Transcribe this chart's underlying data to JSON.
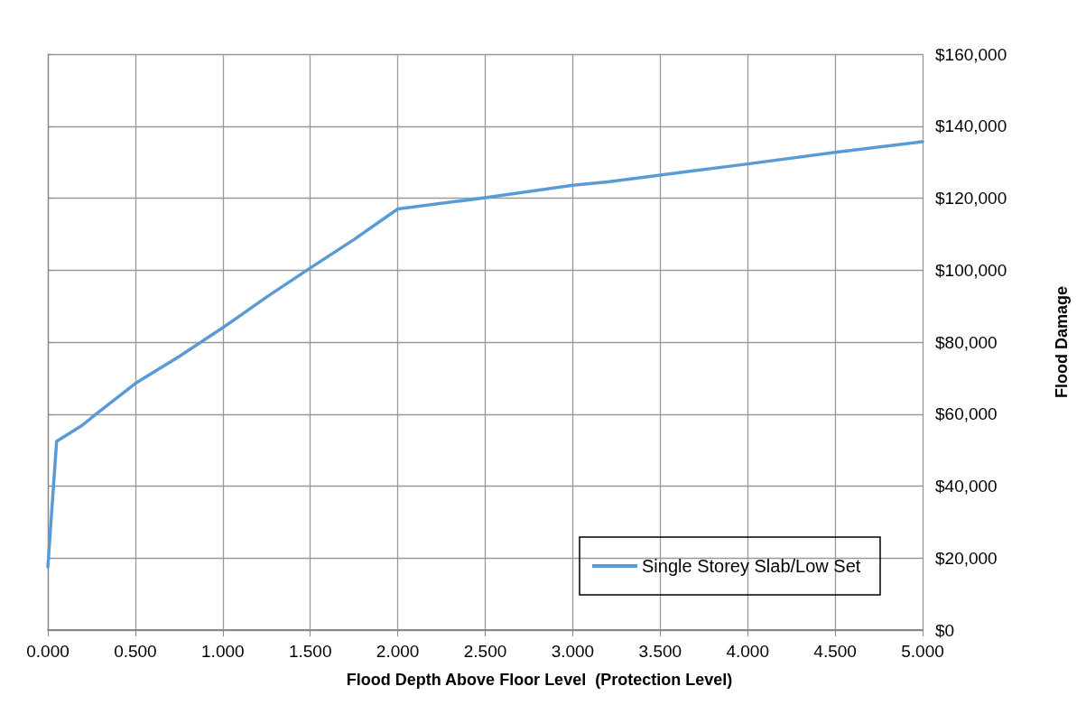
{
  "chart_data": {
    "type": "line",
    "xlabel": "Flood Depth Above Floor Level  (Protection Level)",
    "ylabel": "Flood Damage",
    "x": [
      0,
      0.05,
      0.2,
      0.25,
      0.5,
      0.75,
      1.0,
      1.25,
      1.5,
      1.75,
      2.0,
      2.5,
      3.0,
      3.2,
      3.5,
      4.0,
      4.5,
      5.0
    ],
    "series": [
      {
        "name": "Single Storey Slab/Low Set",
        "color": "#5b9bd5",
        "values": [
          17500,
          52400,
          57000,
          59000,
          68500,
          76000,
          84000,
          92500,
          100600,
          108500,
          117000,
          120100,
          123600,
          124500,
          126400,
          129500,
          132700,
          135700
        ]
      }
    ],
    "xlim": [
      0,
      5
    ],
    "ylim": [
      0,
      160000
    ],
    "xticks": [
      {
        "value": 0,
        "label": "0.000"
      },
      {
        "value": 0.5,
        "label": "0.500"
      },
      {
        "value": 1,
        "label": "1.000"
      },
      {
        "value": 1.5,
        "label": "1.500"
      },
      {
        "value": 2,
        "label": "2.000"
      },
      {
        "value": 2.5,
        "label": "2.500"
      },
      {
        "value": 3,
        "label": "3.000"
      },
      {
        "value": 3.5,
        "label": "3.500"
      },
      {
        "value": 4,
        "label": "4.000"
      },
      {
        "value": 4.5,
        "label": "4.500"
      },
      {
        "value": 5,
        "label": "5.000"
      }
    ],
    "yticks": [
      {
        "value": 0,
        "label": "$0"
      },
      {
        "value": 20000,
        "label": "$20,000"
      },
      {
        "value": 40000,
        "label": "$40,000"
      },
      {
        "value": 60000,
        "label": "$60,000"
      },
      {
        "value": 80000,
        "label": "$80,000"
      },
      {
        "value": 100000,
        "label": "$100,000"
      },
      {
        "value": 120000,
        "label": "$120,000"
      },
      {
        "value": 140000,
        "label": "$140,000"
      },
      {
        "value": 160000,
        "label": "$160,000"
      }
    ],
    "grid": true,
    "legend": "bottom right",
    "marker": "none",
    "line_style": "solid"
  }
}
